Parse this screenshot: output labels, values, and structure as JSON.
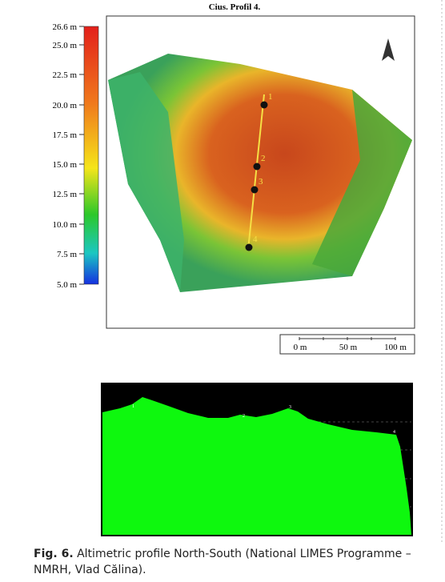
{
  "figure": {
    "map_title": "Cius. Profil 4.",
    "colorbar_labels": [
      "26.6 m",
      "25.0 m",
      "22.5 m",
      "20.0 m",
      "17.5 m",
      "15.0 m",
      "12.5 m",
      "10.0 m",
      "7.5 m",
      "5.0 m"
    ],
    "point_labels": [
      "1",
      "2",
      "3",
      "4"
    ],
    "scale_labels": [
      "0 m",
      "50 m",
      "100 m"
    ],
    "caption_label": "Fig. 6.",
    "caption_text": "Altimetric profile North-South (National LIMES Programme – NMRH, Vlad Călina)."
  }
}
